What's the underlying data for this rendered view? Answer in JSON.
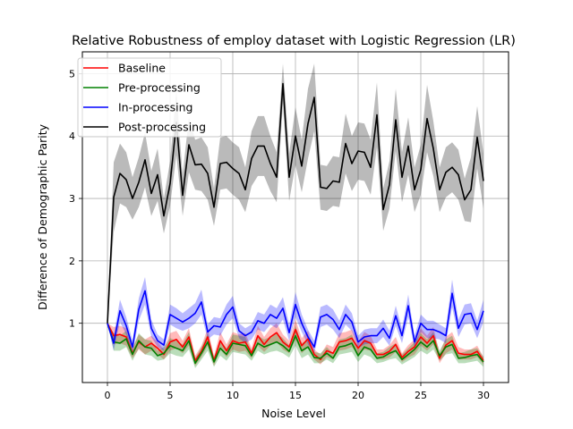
{
  "chart_data": {
    "type": "line",
    "title": "Relative Robustness of employ dataset with Logistic Regression (LR)",
    "xlabel": "Noise Level",
    "ylabel": "Difference of Demographic Parity",
    "xlim": [
      -2,
      32
    ],
    "ylim": [
      0.05,
      5.35
    ],
    "xticks": [
      0,
      5,
      10,
      15,
      20,
      25,
      30
    ],
    "yticks": [
      1,
      2,
      3,
      4,
      5
    ],
    "grid": true,
    "legend_position": "top-left",
    "x": [
      0,
      0.5,
      1,
      1.5,
      2,
      2.5,
      3,
      3.5,
      4,
      4.5,
      5,
      5.5,
      6,
      6.5,
      7,
      7.5,
      8,
      8.5,
      9,
      9.5,
      10,
      10.5,
      11,
      11.5,
      12,
      12.5,
      13,
      13.5,
      14,
      14.5,
      15,
      15.5,
      16,
      16.5,
      17,
      17.5,
      18,
      18.5,
      19,
      19.5,
      20,
      20.5,
      21,
      21.5,
      22,
      22.5,
      23,
      23.5,
      24,
      24.5,
      25,
      25.5,
      26,
      26.5,
      27,
      27.5,
      28,
      28.5,
      29,
      29.5,
      30
    ],
    "series": [
      {
        "name": "Baseline",
        "color": "#ff0000",
        "values": [
          1.0,
          0.8,
          0.82,
          0.78,
          0.52,
          0.7,
          0.62,
          0.68,
          0.6,
          0.5,
          0.7,
          0.74,
          0.62,
          0.78,
          0.4,
          0.55,
          0.78,
          0.4,
          0.72,
          0.56,
          0.72,
          0.68,
          0.7,
          0.52,
          0.8,
          0.66,
          0.78,
          0.85,
          0.7,
          0.62,
          0.9,
          0.64,
          0.75,
          0.5,
          0.42,
          0.56,
          0.52,
          0.7,
          0.72,
          0.76,
          0.6,
          0.72,
          0.68,
          0.5,
          0.5,
          0.55,
          0.66,
          0.45,
          0.55,
          0.62,
          0.78,
          0.68,
          0.8,
          0.44,
          0.65,
          0.72,
          0.52,
          0.5,
          0.5,
          0.55,
          0.4
        ],
        "lower": [
          1.0,
          0.66,
          0.68,
          0.64,
          0.44,
          0.58,
          0.5,
          0.56,
          0.5,
          0.42,
          0.56,
          0.6,
          0.52,
          0.64,
          0.32,
          0.46,
          0.64,
          0.32,
          0.58,
          0.46,
          0.58,
          0.54,
          0.56,
          0.44,
          0.64,
          0.54,
          0.64,
          0.7,
          0.58,
          0.52,
          0.74,
          0.52,
          0.62,
          0.42,
          0.34,
          0.46,
          0.42,
          0.56,
          0.58,
          0.62,
          0.5,
          0.58,
          0.56,
          0.42,
          0.42,
          0.45,
          0.54,
          0.38,
          0.45,
          0.5,
          0.64,
          0.56,
          0.66,
          0.36,
          0.52,
          0.58,
          0.42,
          0.42,
          0.42,
          0.46,
          0.34
        ],
        "upper": [
          1.0,
          0.94,
          0.96,
          0.92,
          0.6,
          0.82,
          0.74,
          0.8,
          0.7,
          0.58,
          0.84,
          0.88,
          0.72,
          0.92,
          0.48,
          0.64,
          0.92,
          0.48,
          0.86,
          0.66,
          0.86,
          0.82,
          0.84,
          0.6,
          0.96,
          0.78,
          0.92,
          1.0,
          0.82,
          0.72,
          1.06,
          0.76,
          0.88,
          0.58,
          0.5,
          0.66,
          0.62,
          0.84,
          0.86,
          0.9,
          0.7,
          0.86,
          0.8,
          0.58,
          0.58,
          0.65,
          0.78,
          0.52,
          0.65,
          0.74,
          0.92,
          0.8,
          0.94,
          0.52,
          0.78,
          0.86,
          0.62,
          0.58,
          0.58,
          0.64,
          0.46
        ]
      },
      {
        "name": "Pre-processing",
        "color": "#008000",
        "values": [
          1.0,
          0.7,
          0.68,
          0.75,
          0.5,
          0.72,
          0.62,
          0.6,
          0.48,
          0.52,
          0.64,
          0.6,
          0.56,
          0.72,
          0.36,
          0.52,
          0.7,
          0.38,
          0.6,
          0.5,
          0.68,
          0.66,
          0.64,
          0.48,
          0.68,
          0.62,
          0.66,
          0.7,
          0.64,
          0.55,
          0.8,
          0.56,
          0.62,
          0.45,
          0.44,
          0.52,
          0.44,
          0.62,
          0.64,
          0.68,
          0.48,
          0.62,
          0.58,
          0.44,
          0.46,
          0.52,
          0.56,
          0.42,
          0.5,
          0.58,
          0.7,
          0.62,
          0.72,
          0.48,
          0.62,
          0.66,
          0.44,
          0.45,
          0.48,
          0.5,
          0.38
        ],
        "lower": [
          1.0,
          0.56,
          0.56,
          0.62,
          0.4,
          0.6,
          0.5,
          0.48,
          0.4,
          0.42,
          0.52,
          0.48,
          0.46,
          0.58,
          0.28,
          0.42,
          0.56,
          0.3,
          0.48,
          0.4,
          0.54,
          0.52,
          0.5,
          0.4,
          0.56,
          0.5,
          0.54,
          0.56,
          0.52,
          0.45,
          0.64,
          0.44,
          0.5,
          0.36,
          0.36,
          0.42,
          0.36,
          0.5,
          0.52,
          0.54,
          0.38,
          0.5,
          0.46,
          0.36,
          0.38,
          0.42,
          0.44,
          0.34,
          0.4,
          0.46,
          0.56,
          0.5,
          0.58,
          0.4,
          0.5,
          0.52,
          0.36,
          0.36,
          0.38,
          0.4,
          0.3
        ],
        "upper": [
          1.0,
          0.84,
          0.8,
          0.88,
          0.6,
          0.84,
          0.74,
          0.72,
          0.56,
          0.62,
          0.76,
          0.72,
          0.66,
          0.86,
          0.44,
          0.62,
          0.84,
          0.46,
          0.72,
          0.6,
          0.82,
          0.8,
          0.78,
          0.56,
          0.8,
          0.74,
          0.78,
          0.84,
          0.76,
          0.65,
          0.96,
          0.68,
          0.74,
          0.54,
          0.52,
          0.62,
          0.52,
          0.74,
          0.76,
          0.82,
          0.58,
          0.74,
          0.7,
          0.52,
          0.54,
          0.62,
          0.68,
          0.5,
          0.6,
          0.7,
          0.84,
          0.74,
          0.86,
          0.56,
          0.74,
          0.8,
          0.52,
          0.54,
          0.58,
          0.6,
          0.46
        ]
      },
      {
        "name": "In-processing",
        "color": "#0000ff",
        "values": [
          1.0,
          0.68,
          1.2,
          0.96,
          0.62,
          1.22,
          1.52,
          0.92,
          0.72,
          0.65,
          1.14,
          1.08,
          1.02,
          1.08,
          1.16,
          1.34,
          0.86,
          0.96,
          0.94,
          1.14,
          1.26,
          0.88,
          0.8,
          0.86,
          1.04,
          1.0,
          1.14,
          1.08,
          1.24,
          0.85,
          1.3,
          1.0,
          0.78,
          0.62,
          1.1,
          1.14,
          1.06,
          0.9,
          1.14,
          1.02,
          0.7,
          0.78,
          0.8,
          0.8,
          0.92,
          0.76,
          1.12,
          0.8,
          1.28,
          0.7,
          1.0,
          0.9,
          0.9,
          0.86,
          0.8,
          1.48,
          0.92,
          1.14,
          1.16,
          0.9,
          1.2
        ],
        "lower": [
          1.0,
          0.56,
          1.02,
          0.82,
          0.52,
          1.04,
          1.3,
          0.78,
          0.62,
          0.56,
          0.98,
          0.92,
          0.88,
          0.92,
          1.0,
          1.14,
          0.74,
          0.82,
          0.8,
          0.98,
          1.08,
          0.76,
          0.68,
          0.74,
          0.9,
          0.86,
          0.98,
          0.92,
          1.06,
          0.72,
          1.1,
          0.86,
          0.66,
          0.52,
          0.94,
          0.98,
          0.9,
          0.76,
          0.98,
          0.88,
          0.6,
          0.66,
          0.68,
          0.68,
          0.78,
          0.64,
          0.96,
          0.68,
          1.1,
          0.6,
          0.86,
          0.76,
          0.76,
          0.74,
          0.68,
          1.26,
          0.78,
          0.98,
          1.0,
          0.76,
          1.02
        ],
        "upper": [
          1.0,
          0.8,
          1.38,
          1.1,
          0.72,
          1.4,
          1.74,
          1.06,
          0.82,
          0.74,
          1.3,
          1.24,
          1.16,
          1.24,
          1.32,
          1.54,
          0.98,
          1.1,
          1.08,
          1.3,
          1.44,
          1.0,
          0.92,
          0.98,
          1.18,
          1.14,
          1.3,
          1.24,
          1.42,
          0.98,
          1.5,
          1.14,
          0.9,
          0.72,
          1.26,
          1.3,
          1.22,
          1.04,
          1.3,
          1.16,
          0.8,
          0.9,
          0.92,
          0.92,
          1.06,
          0.88,
          1.28,
          0.92,
          1.46,
          0.8,
          1.14,
          1.04,
          1.04,
          0.98,
          0.92,
          1.7,
          1.06,
          1.3,
          1.32,
          1.04,
          1.38
        ]
      },
      {
        "name": "Post-processing",
        "color": "#000000",
        "values": [
          1.0,
          3.02,
          3.4,
          3.3,
          3.0,
          3.26,
          3.62,
          3.08,
          3.38,
          2.72,
          3.24,
          4.22,
          3.05,
          3.86,
          3.54,
          3.55,
          3.4,
          2.86,
          3.56,
          3.58,
          3.48,
          3.4,
          3.14,
          3.64,
          3.84,
          3.84,
          3.56,
          3.34,
          4.84,
          3.34,
          4.0,
          3.52,
          4.2,
          4.62,
          3.18,
          3.16,
          3.28,
          3.26,
          3.88,
          3.56,
          3.76,
          3.74,
          3.5,
          4.34,
          2.82,
          3.22,
          4.26,
          3.34,
          3.84,
          3.14,
          3.46,
          4.28,
          3.8,
          3.14,
          3.42,
          3.5,
          3.38,
          2.98,
          3.14,
          3.98,
          3.28
        ],
        "lower": [
          1.0,
          2.46,
          2.92,
          2.86,
          2.66,
          2.86,
          3.18,
          2.72,
          2.96,
          2.44,
          2.88,
          3.7,
          2.72,
          3.42,
          3.14,
          3.12,
          2.98,
          2.56,
          3.14,
          3.16,
          3.06,
          2.98,
          2.78,
          3.2,
          3.36,
          3.36,
          3.12,
          2.94,
          4.52,
          2.96,
          3.54,
          3.1,
          3.64,
          4.08,
          2.82,
          2.8,
          2.88,
          2.86,
          3.4,
          3.12,
          3.3,
          3.28,
          3.06,
          3.82,
          2.48,
          2.84,
          3.76,
          2.94,
          3.38,
          2.78,
          3.06,
          3.74,
          3.36,
          2.78,
          3.02,
          3.1,
          2.98,
          2.64,
          2.62,
          3.48,
          2.84
        ],
        "upper": [
          1.0,
          3.58,
          3.88,
          3.74,
          3.34,
          3.66,
          4.06,
          3.44,
          3.8,
          3.0,
          3.6,
          4.74,
          3.38,
          4.3,
          3.94,
          3.98,
          3.82,
          3.16,
          3.98,
          4.0,
          3.9,
          3.82,
          3.5,
          4.08,
          4.32,
          4.32,
          4.0,
          3.74,
          5.16,
          3.72,
          4.46,
          3.94,
          4.76,
          5.16,
          3.54,
          3.52,
          3.68,
          3.66,
          4.36,
          4.0,
          4.22,
          4.2,
          3.94,
          4.86,
          3.16,
          3.6,
          4.76,
          3.74,
          4.3,
          3.5,
          3.86,
          4.82,
          4.24,
          3.5,
          3.82,
          3.9,
          3.78,
          3.32,
          3.66,
          4.48,
          3.72
        ]
      }
    ]
  }
}
